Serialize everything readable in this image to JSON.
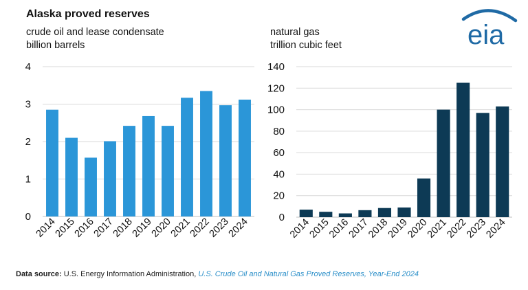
{
  "title": "Alaska proved reserves",
  "source": {
    "label": "Data source:",
    "text": "U.S. Energy Information Administration,",
    "link": "U.S. Crude Oil and Natural Gas Proved Reserves, Year-End 2024"
  },
  "logo_text": "eia",
  "colors": {
    "oil": "#2b96d8",
    "gas": "#0d3a55",
    "logo": "#1f6aa5",
    "grid": "#d9d9d9"
  },
  "chart_data": [
    {
      "type": "bar",
      "subtitle_line1": "crude oil and lease condensate",
      "subtitle_line2": "billion barrels",
      "categories": [
        "2014",
        "2015",
        "2016",
        "2017",
        "2018",
        "2019",
        "2020",
        "2021",
        "2022",
        "2023",
        "2024"
      ],
      "values": [
        2.85,
        2.1,
        1.57,
        2.01,
        2.42,
        2.68,
        2.42,
        3.17,
        3.35,
        2.97,
        3.12
      ],
      "ylim": [
        0,
        4
      ],
      "yticks": [
        0,
        1,
        2,
        3,
        4
      ],
      "grid": true
    },
    {
      "type": "bar",
      "subtitle_line1": "natural gas",
      "subtitle_line2": "trillion cubic feet",
      "categories": [
        "2014",
        "2015",
        "2016",
        "2017",
        "2018",
        "2019",
        "2020",
        "2021",
        "2022",
        "2023",
        "2024"
      ],
      "values": [
        7,
        5,
        3.5,
        6.5,
        8.5,
        9,
        36,
        100,
        125,
        97,
        103
      ],
      "ylim": [
        0,
        140
      ],
      "yticks": [
        0,
        20,
        40,
        60,
        80,
        100,
        120,
        140
      ],
      "grid": true
    }
  ]
}
